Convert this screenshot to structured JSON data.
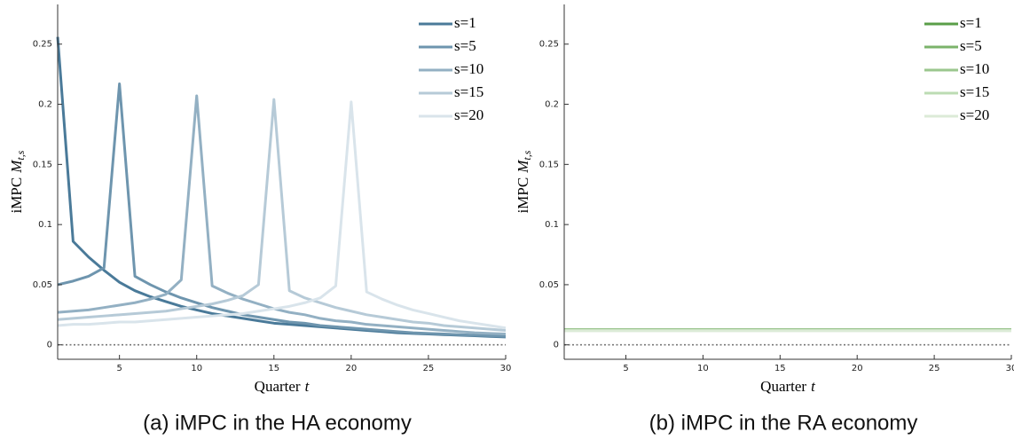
{
  "chart_data": [
    {
      "type": "line",
      "xlabel": "Quarter",
      "xlabel_symbol": "t",
      "ylabel": "iMPC",
      "ylabel_symbol": "M",
      "ylabel_subscript": "t,s",
      "caption": "(a) iMPC in the HA economy",
      "x": [
        1,
        2,
        3,
        4,
        5,
        6,
        7,
        8,
        9,
        10,
        11,
        12,
        13,
        14,
        15,
        16,
        17,
        18,
        19,
        20,
        21,
        22,
        23,
        24,
        25,
        26,
        27,
        28,
        29,
        30
      ],
      "xlim": [
        1,
        30
      ],
      "xticks": [
        5,
        10,
        15,
        20,
        25,
        30
      ],
      "ylim": [
        -0.012,
        0.283
      ],
      "yticks": [
        0,
        0.05,
        0.1,
        0.15,
        0.2,
        0.25
      ],
      "hline": 0,
      "legend": "upper right",
      "series": [
        {
          "name": "s=1",
          "color": "#4a7a99",
          "values": [
            0.256,
            0.086,
            0.073,
            0.062,
            0.052,
            0.045,
            0.04,
            0.036,
            0.032,
            0.029,
            0.026,
            0.024,
            0.022,
            0.02,
            0.018,
            0.017,
            0.016,
            0.015,
            0.014,
            0.013,
            0.012,
            0.011,
            0.01,
            0.0095,
            0.009,
            0.0085,
            0.008,
            0.0075,
            0.007,
            0.0065
          ]
        },
        {
          "name": "s=5",
          "color": "#6e95ae",
          "values": [
            0.05,
            0.053,
            0.057,
            0.064,
            0.217,
            0.057,
            0.05,
            0.044,
            0.039,
            0.035,
            0.031,
            0.028,
            0.025,
            0.023,
            0.021,
            0.019,
            0.018,
            0.016,
            0.015,
            0.014,
            0.013,
            0.012,
            0.011,
            0.01,
            0.0095,
            0.009,
            0.0085,
            0.008,
            0.0075,
            0.007
          ]
        },
        {
          "name": "s=10",
          "color": "#93b0c3",
          "values": [
            0.027,
            0.028,
            0.029,
            0.031,
            0.033,
            0.035,
            0.038,
            0.042,
            0.054,
            0.207,
            0.049,
            0.043,
            0.038,
            0.034,
            0.03,
            0.027,
            0.025,
            0.022,
            0.02,
            0.019,
            0.017,
            0.016,
            0.015,
            0.014,
            0.013,
            0.012,
            0.011,
            0.01,
            0.0095,
            0.009
          ]
        },
        {
          "name": "s=15",
          "color": "#b6cad7",
          "values": [
            0.021,
            0.022,
            0.023,
            0.024,
            0.025,
            0.026,
            0.027,
            0.028,
            0.03,
            0.032,
            0.034,
            0.037,
            0.041,
            0.05,
            0.204,
            0.045,
            0.039,
            0.035,
            0.031,
            0.028,
            0.025,
            0.023,
            0.021,
            0.019,
            0.018,
            0.016,
            0.015,
            0.014,
            0.013,
            0.012
          ]
        },
        {
          "name": "s=20",
          "color": "#d9e4eb",
          "values": [
            0.016,
            0.017,
            0.017,
            0.018,
            0.019,
            0.019,
            0.02,
            0.021,
            0.022,
            0.023,
            0.024,
            0.025,
            0.026,
            0.028,
            0.03,
            0.032,
            0.035,
            0.039,
            0.049,
            0.202,
            0.044,
            0.038,
            0.033,
            0.029,
            0.026,
            0.023,
            0.02,
            0.018,
            0.016,
            0.014
          ]
        }
      ]
    },
    {
      "type": "line",
      "xlabel": "Quarter",
      "xlabel_symbol": "t",
      "ylabel": "iMPC",
      "ylabel_symbol": "M",
      "ylabel_subscript": "t,s",
      "caption": "(b) iMPC in the RA economy",
      "x": [
        1,
        2,
        3,
        4,
        5,
        6,
        7,
        8,
        9,
        10,
        11,
        12,
        13,
        14,
        15,
        16,
        17,
        18,
        19,
        20,
        21,
        22,
        23,
        24,
        25,
        26,
        27,
        28,
        29,
        30
      ],
      "xlim": [
        1,
        30
      ],
      "xticks": [
        5,
        10,
        15,
        20,
        25,
        30
      ],
      "ylim": [
        -0.012,
        0.283
      ],
      "yticks": [
        0,
        0.05,
        0.1,
        0.15,
        0.2,
        0.25
      ],
      "hline": 0,
      "legend": "upper right",
      "series": [
        {
          "name": "s=1",
          "color": "#5a9e48",
          "values": [
            0.0125,
            0.0125,
            0.0125,
            0.0125,
            0.0125,
            0.0125,
            0.0125,
            0.0125,
            0.0125,
            0.0125,
            0.0125,
            0.0125,
            0.0125,
            0.0125,
            0.0125,
            0.0125,
            0.0125,
            0.0125,
            0.0125,
            0.0125,
            0.0125,
            0.0125,
            0.0125,
            0.0125,
            0.0125,
            0.0125,
            0.0125,
            0.0125,
            0.0125,
            0.0125
          ]
        },
        {
          "name": "s=5",
          "color": "#7bb36b",
          "values": [
            0.0123,
            0.0123,
            0.0123,
            0.0123,
            0.0123,
            0.0123,
            0.0123,
            0.0123,
            0.0123,
            0.0123,
            0.0123,
            0.0123,
            0.0123,
            0.0123,
            0.0123,
            0.0123,
            0.0123,
            0.0123,
            0.0123,
            0.0123,
            0.0123,
            0.0123,
            0.0123,
            0.0123,
            0.0123,
            0.0123,
            0.0123,
            0.0123,
            0.0123,
            0.0123
          ]
        },
        {
          "name": "s=10",
          "color": "#9bc78e",
          "values": [
            0.0121,
            0.0121,
            0.0121,
            0.0121,
            0.0121,
            0.0121,
            0.0121,
            0.0121,
            0.0121,
            0.0121,
            0.0121,
            0.0121,
            0.0121,
            0.0121,
            0.0121,
            0.0121,
            0.0121,
            0.0121,
            0.0121,
            0.0121,
            0.0121,
            0.0121,
            0.0121,
            0.0121,
            0.0121,
            0.0121,
            0.0121,
            0.0121,
            0.0121,
            0.0121
          ]
        },
        {
          "name": "s=15",
          "color": "#bcdcb3",
          "values": [
            0.0119,
            0.0119,
            0.0119,
            0.0119,
            0.0119,
            0.0119,
            0.0119,
            0.0119,
            0.0119,
            0.0119,
            0.0119,
            0.0119,
            0.0119,
            0.0119,
            0.0119,
            0.0119,
            0.0119,
            0.0119,
            0.0119,
            0.0119,
            0.0119,
            0.0119,
            0.0119,
            0.0119,
            0.0119,
            0.0119,
            0.0119,
            0.0119,
            0.0119,
            0.0119
          ]
        },
        {
          "name": "s=20",
          "color": "#dcebd7",
          "values": [
            0.0117,
            0.0117,
            0.0117,
            0.0117,
            0.0117,
            0.0117,
            0.0117,
            0.0117,
            0.0117,
            0.0117,
            0.0117,
            0.0117,
            0.0117,
            0.0117,
            0.0117,
            0.0117,
            0.0117,
            0.0117,
            0.0117,
            0.0117,
            0.0117,
            0.0117,
            0.0117,
            0.0117,
            0.0117,
            0.0117,
            0.0117,
            0.0117,
            0.0117,
            0.0117
          ]
        }
      ]
    }
  ]
}
